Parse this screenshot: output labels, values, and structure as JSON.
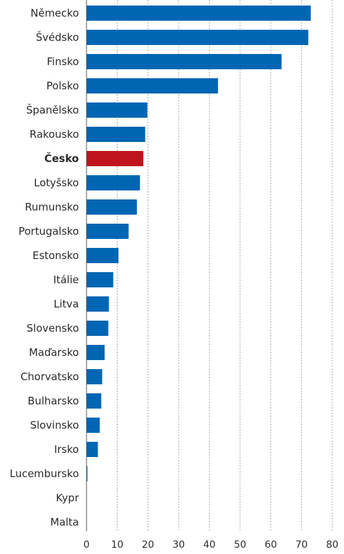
{
  "chart_data": {
    "type": "bar",
    "orientation": "horizontal",
    "categories": [
      "Německo",
      "Švédsko",
      "Finsko",
      "Polsko",
      "Španělsko",
      "Rakousko",
      "Česko",
      "Lotyšsko",
      "Rumunsko",
      "Portugalsko",
      "Estonsko",
      "Itálie",
      "Litva",
      "Slovensko",
      "Maďarsko",
      "Chorvatsko",
      "Bulharsko",
      "Slovinsko",
      "Irsko",
      "Lucembursko",
      "Kypr",
      "Malta"
    ],
    "values": [
      73,
      72.2,
      63.5,
      42.8,
      19.8,
      19.1,
      18.5,
      17.4,
      16.4,
      13.7,
      10.4,
      8.7,
      7.3,
      7.1,
      5.9,
      5.1,
      4.8,
      4.3,
      3.7,
      0.3,
      0,
      0
    ],
    "highlight": "Česko",
    "colors": {
      "bar": "#0066b3",
      "highlight": "#c0141c"
    },
    "xlim": [
      0,
      80
    ],
    "xticks": [
      0,
      10,
      20,
      30,
      40,
      50,
      60,
      70,
      80
    ],
    "grid": "vertical dashed"
  }
}
